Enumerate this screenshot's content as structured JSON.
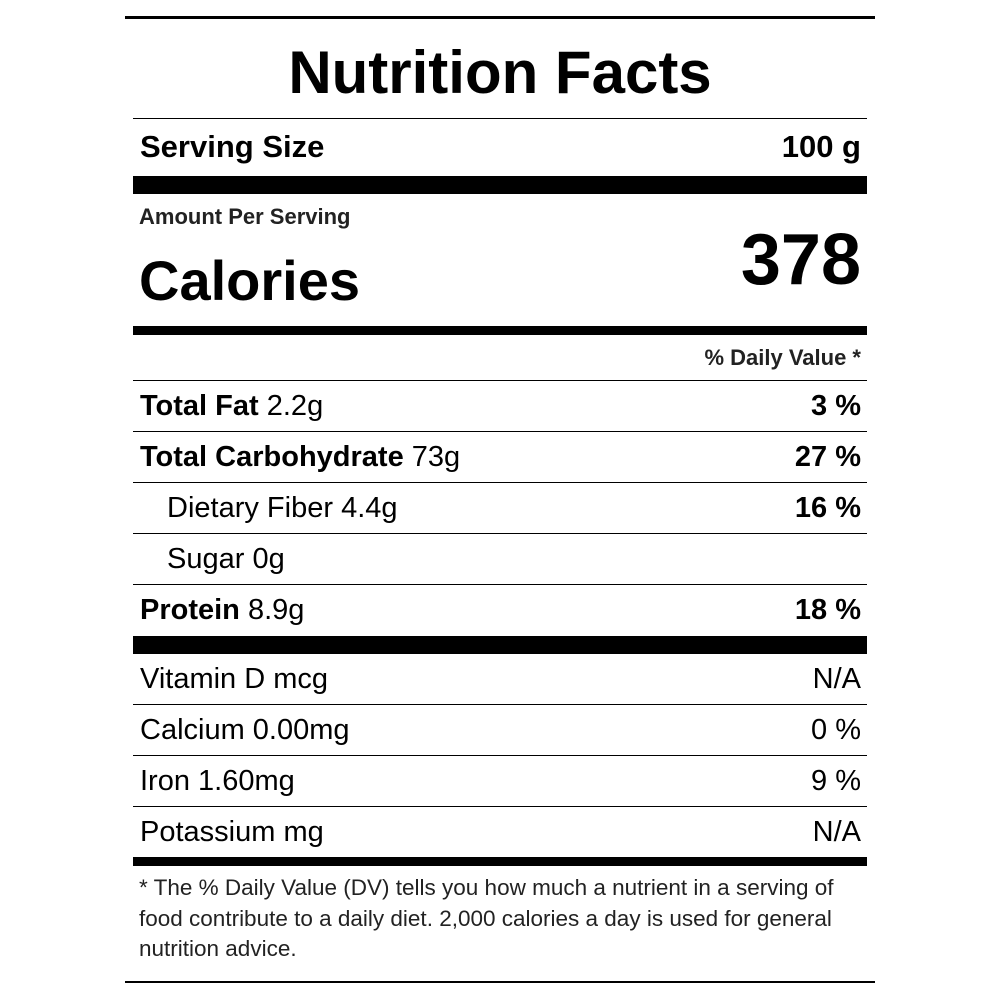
{
  "header": {
    "title": "Nutrition Facts"
  },
  "serving": {
    "label": "Serving Size",
    "value": "100 g"
  },
  "calories": {
    "caption": "Amount Per Serving",
    "label": "Calories",
    "value": 378
  },
  "daily_value_heading": "% Daily Value *",
  "nutrients": [
    {
      "name": "Total Fat",
      "amount": "2.2g",
      "daily_value": "3 %"
    },
    {
      "name": "Total Carbohydrate",
      "amount": "73g",
      "daily_value": "27 %"
    },
    {
      "name": "Dietary Fiber",
      "amount": "4.4g",
      "daily_value": "16 %"
    },
    {
      "name": "Sugar",
      "amount": "0g"
    },
    {
      "name": "Protein",
      "amount": "8.9g",
      "daily_value": "18 %"
    }
  ],
  "minerals": [
    {
      "name": "Vitamin D mcg",
      "daily_value": "N/A"
    },
    {
      "name": "Calcium 0.00mg",
      "daily_value": "0 %"
    },
    {
      "name": "Iron 1.60mg",
      "daily_value": "9 %"
    },
    {
      "name": "Potassium mg",
      "daily_value": "N/A"
    }
  ],
  "footnote": "* The % Daily Value (DV) tells you how much a nutrient in a serving of food contribute to a daily diet. 2,000 calories a day is used for general nutrition advice."
}
